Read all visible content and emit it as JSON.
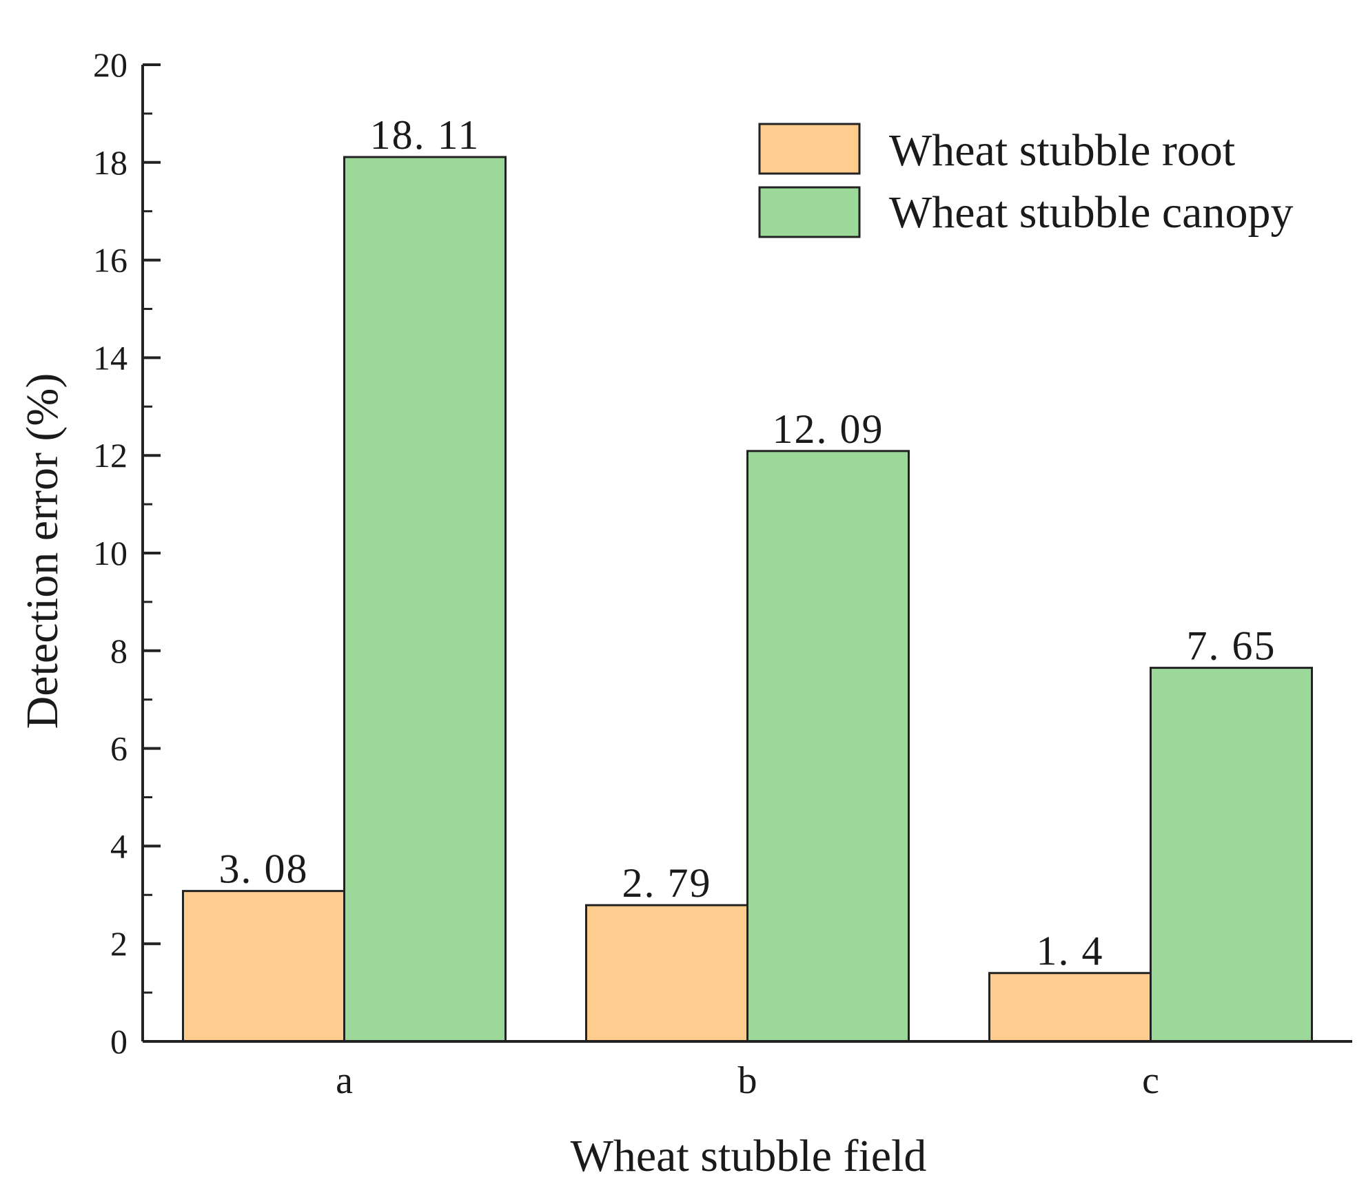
{
  "chart_data": {
    "type": "bar",
    "title": "",
    "xlabel": "Wheat stubble field",
    "ylabel": "Detection error (%)",
    "categories": [
      "a",
      "b",
      "c"
    ],
    "ylim": [
      0,
      20
    ],
    "yticks": [
      0,
      2,
      4,
      6,
      8,
      10,
      12,
      14,
      16,
      18,
      20
    ],
    "ytick_labels": [
      "0",
      "2",
      "4",
      "6",
      "8",
      "10",
      "12",
      "14",
      "16",
      "18",
      "20"
    ],
    "grid": false,
    "legend_position": "top-right",
    "series": [
      {
        "name": "Wheat stubble root",
        "color": "#FFCC90",
        "values": [
          3.08,
          2.79,
          1.4
        ],
        "labels": [
          "3. 08",
          "2. 79",
          "1. 4"
        ]
      },
      {
        "name": "Wheat stubble canopy",
        "color": "#9CD89A",
        "values": [
          18.11,
          12.09,
          7.65
        ],
        "labels": [
          "18. 11",
          "12. 09",
          "7. 65"
        ]
      }
    ]
  }
}
